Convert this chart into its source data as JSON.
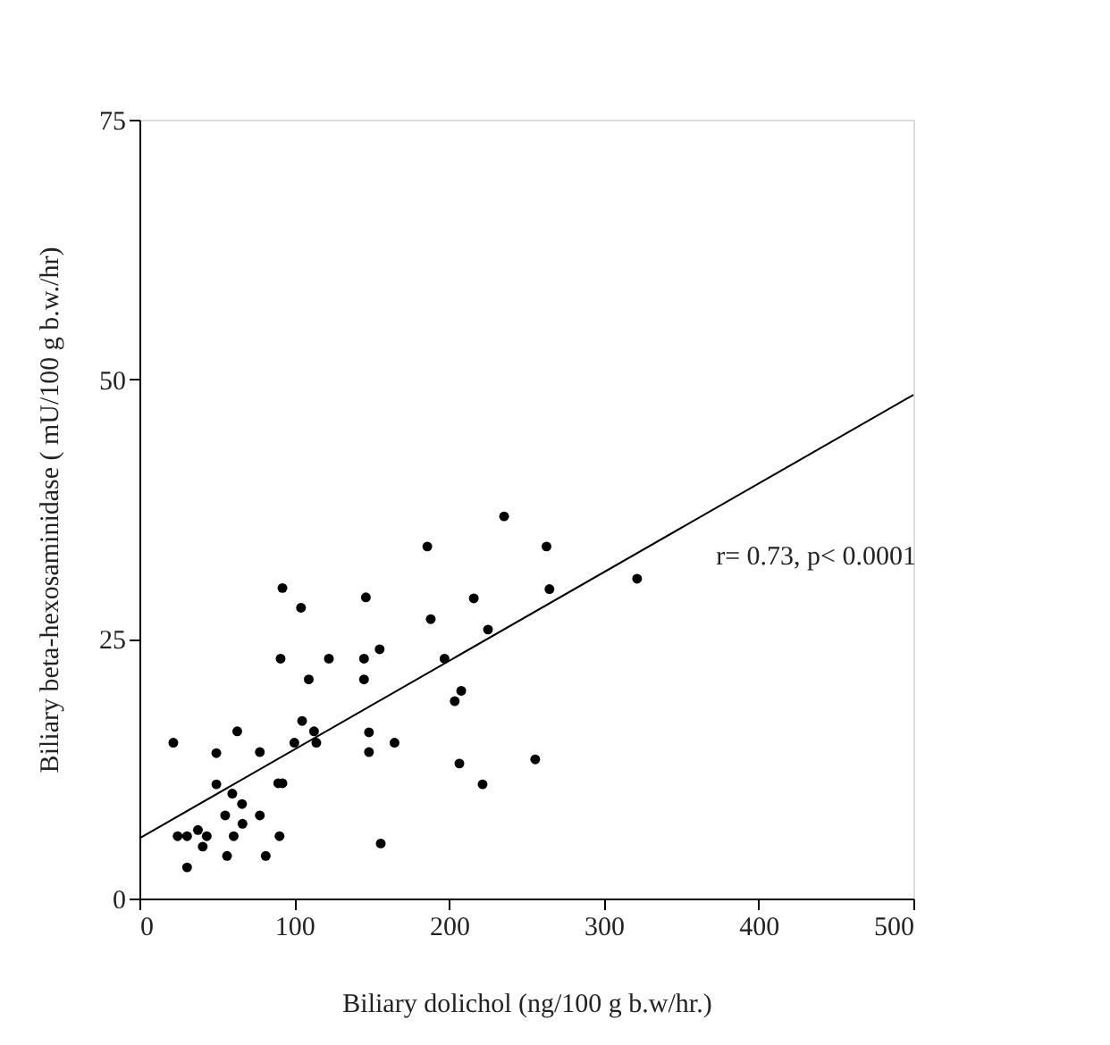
{
  "chart_data": {
    "type": "scatter",
    "xlabel": "Biliary dolichol (ng/100 g b.w/hr.)",
    "ylabel": "Biliary beta-hexosaminidase ( mU/100 g b.w./hr)",
    "xlim": [
      0,
      500
    ],
    "ylim": [
      0,
      75
    ],
    "xticks": [
      0,
      100,
      200,
      300,
      400,
      500
    ],
    "yticks": [
      0,
      25,
      50,
      75
    ],
    "grid": false,
    "marker": "circle",
    "annotations": [
      "r= 0.73, p< 0.0001"
    ],
    "series": [
      {
        "color": "#000000",
        "x": [
          235.6,
          186,
          92.4,
          104.4,
          146.3,
          216,
          188.2,
          225.2,
          91.2,
          122.4,
          145.1,
          155.2,
          109.4,
          145.1,
          197.1,
          207.9,
          203.7,
          105.1,
          112.8,
          114.3,
          100.1,
          63.2,
          21.9,
          49.7,
          77.8,
          148.3,
          164.8,
          148.3,
          206.7,
          221.7,
          49.7,
          89.7,
          92.4,
          60,
          66.3,
          55.4,
          77.8,
          66.6,
          37.8,
          24.7,
          30.8,
          43.5,
          60.9,
          90.5,
          40.9,
          155.9,
          56.6,
          81.6,
          30.8,
          263,
          264.9,
          321.5,
          255.7
        ],
        "values": [
          36.8,
          33.9,
          29.9,
          28.0,
          29.0,
          28.9,
          26.9,
          25.9,
          23.1,
          23.1,
          23.1,
          24.0,
          21.1,
          21.1,
          23.1,
          20.0,
          19.0,
          17.1,
          16.1,
          15.0,
          15.0,
          16.1,
          15.0,
          14.0,
          14.1,
          16.0,
          15.0,
          14.1,
          13.0,
          11.0,
          11.0,
          11.1,
          11.1,
          10.1,
          9.1,
          8.0,
          8.0,
          7.2,
          6.6,
          6.0,
          6.0,
          6.0,
          6.0,
          6.0,
          5.0,
          5.3,
          4.1,
          4.1,
          3.0,
          33.9,
          29.8,
          30.8,
          13.4
        ]
      },
      {
        "type": "line",
        "color": "#000000",
        "line_style": "solid",
        "marker": "none",
        "x": [
          0,
          500
        ],
        "values": [
          5.8,
          48.5
        ]
      }
    ]
  }
}
